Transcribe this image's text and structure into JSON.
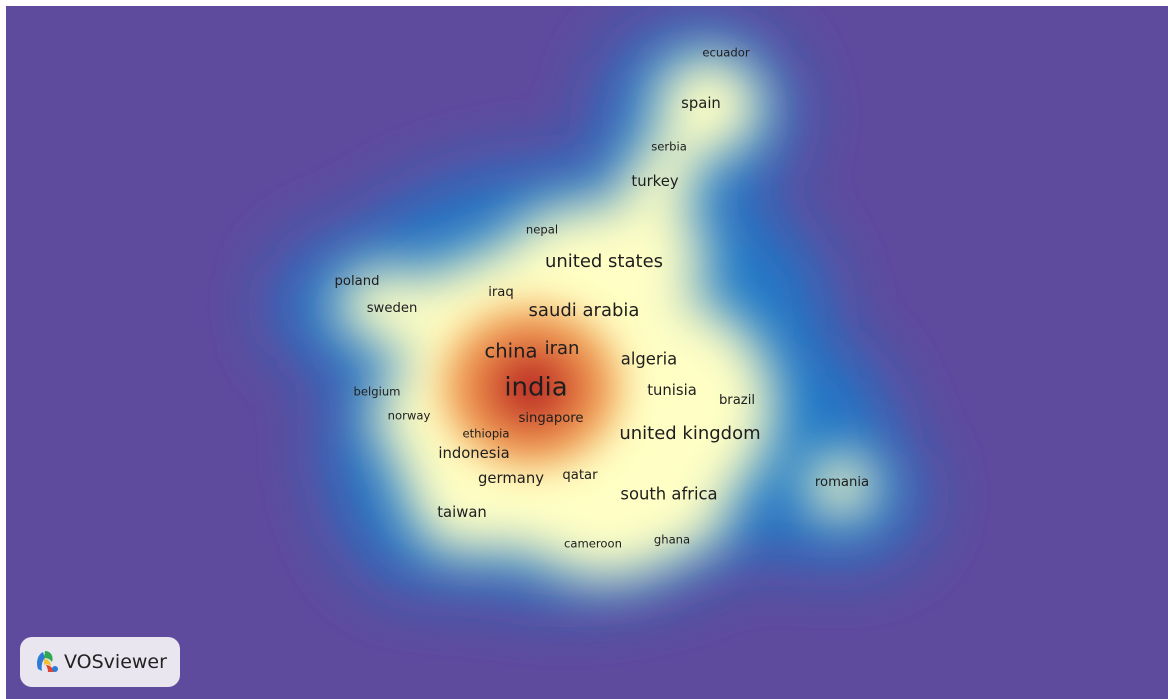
{
  "map": {
    "background_color": "#5e4b9e",
    "density_colors": [
      "#5e4b9e",
      "#1f78c8",
      "#ffffc5",
      "#f5b35a",
      "#a8131c"
    ],
    "nodes": [
      {
        "label": "ecuador",
        "weight": 1
      },
      {
        "label": "spain",
        "weight": 3
      },
      {
        "label": "serbia",
        "weight": 1
      },
      {
        "label": "turkey",
        "weight": 3
      },
      {
        "label": "nepal",
        "weight": 1
      },
      {
        "label": "united states",
        "weight": 5
      },
      {
        "label": "poland",
        "weight": 2
      },
      {
        "label": "iraq",
        "weight": 2
      },
      {
        "label": "sweden",
        "weight": 2
      },
      {
        "label": "saudi arabia",
        "weight": 5
      },
      {
        "label": "china",
        "weight": 6
      },
      {
        "label": "iran",
        "weight": 5
      },
      {
        "label": "algeria",
        "weight": 4
      },
      {
        "label": "india",
        "weight": 10
      },
      {
        "label": "belgium",
        "weight": 1
      },
      {
        "label": "tunisia",
        "weight": 3
      },
      {
        "label": "brazil",
        "weight": 2
      },
      {
        "label": "norway",
        "weight": 1
      },
      {
        "label": "singapore",
        "weight": 2
      },
      {
        "label": "united kingdom",
        "weight": 5
      },
      {
        "label": "ethiopia",
        "weight": 1
      },
      {
        "label": "indonesia",
        "weight": 3
      },
      {
        "label": "germany",
        "weight": 3
      },
      {
        "label": "qatar",
        "weight": 2
      },
      {
        "label": "romania",
        "weight": 2
      },
      {
        "label": "south africa",
        "weight": 4
      },
      {
        "label": "taiwan",
        "weight": 3
      },
      {
        "label": "cameroon",
        "weight": 1
      },
      {
        "label": "ghana",
        "weight": 1
      }
    ]
  },
  "badge": {
    "label": "VOSviewer",
    "icon": "vosviewer-logo-icon"
  }
}
